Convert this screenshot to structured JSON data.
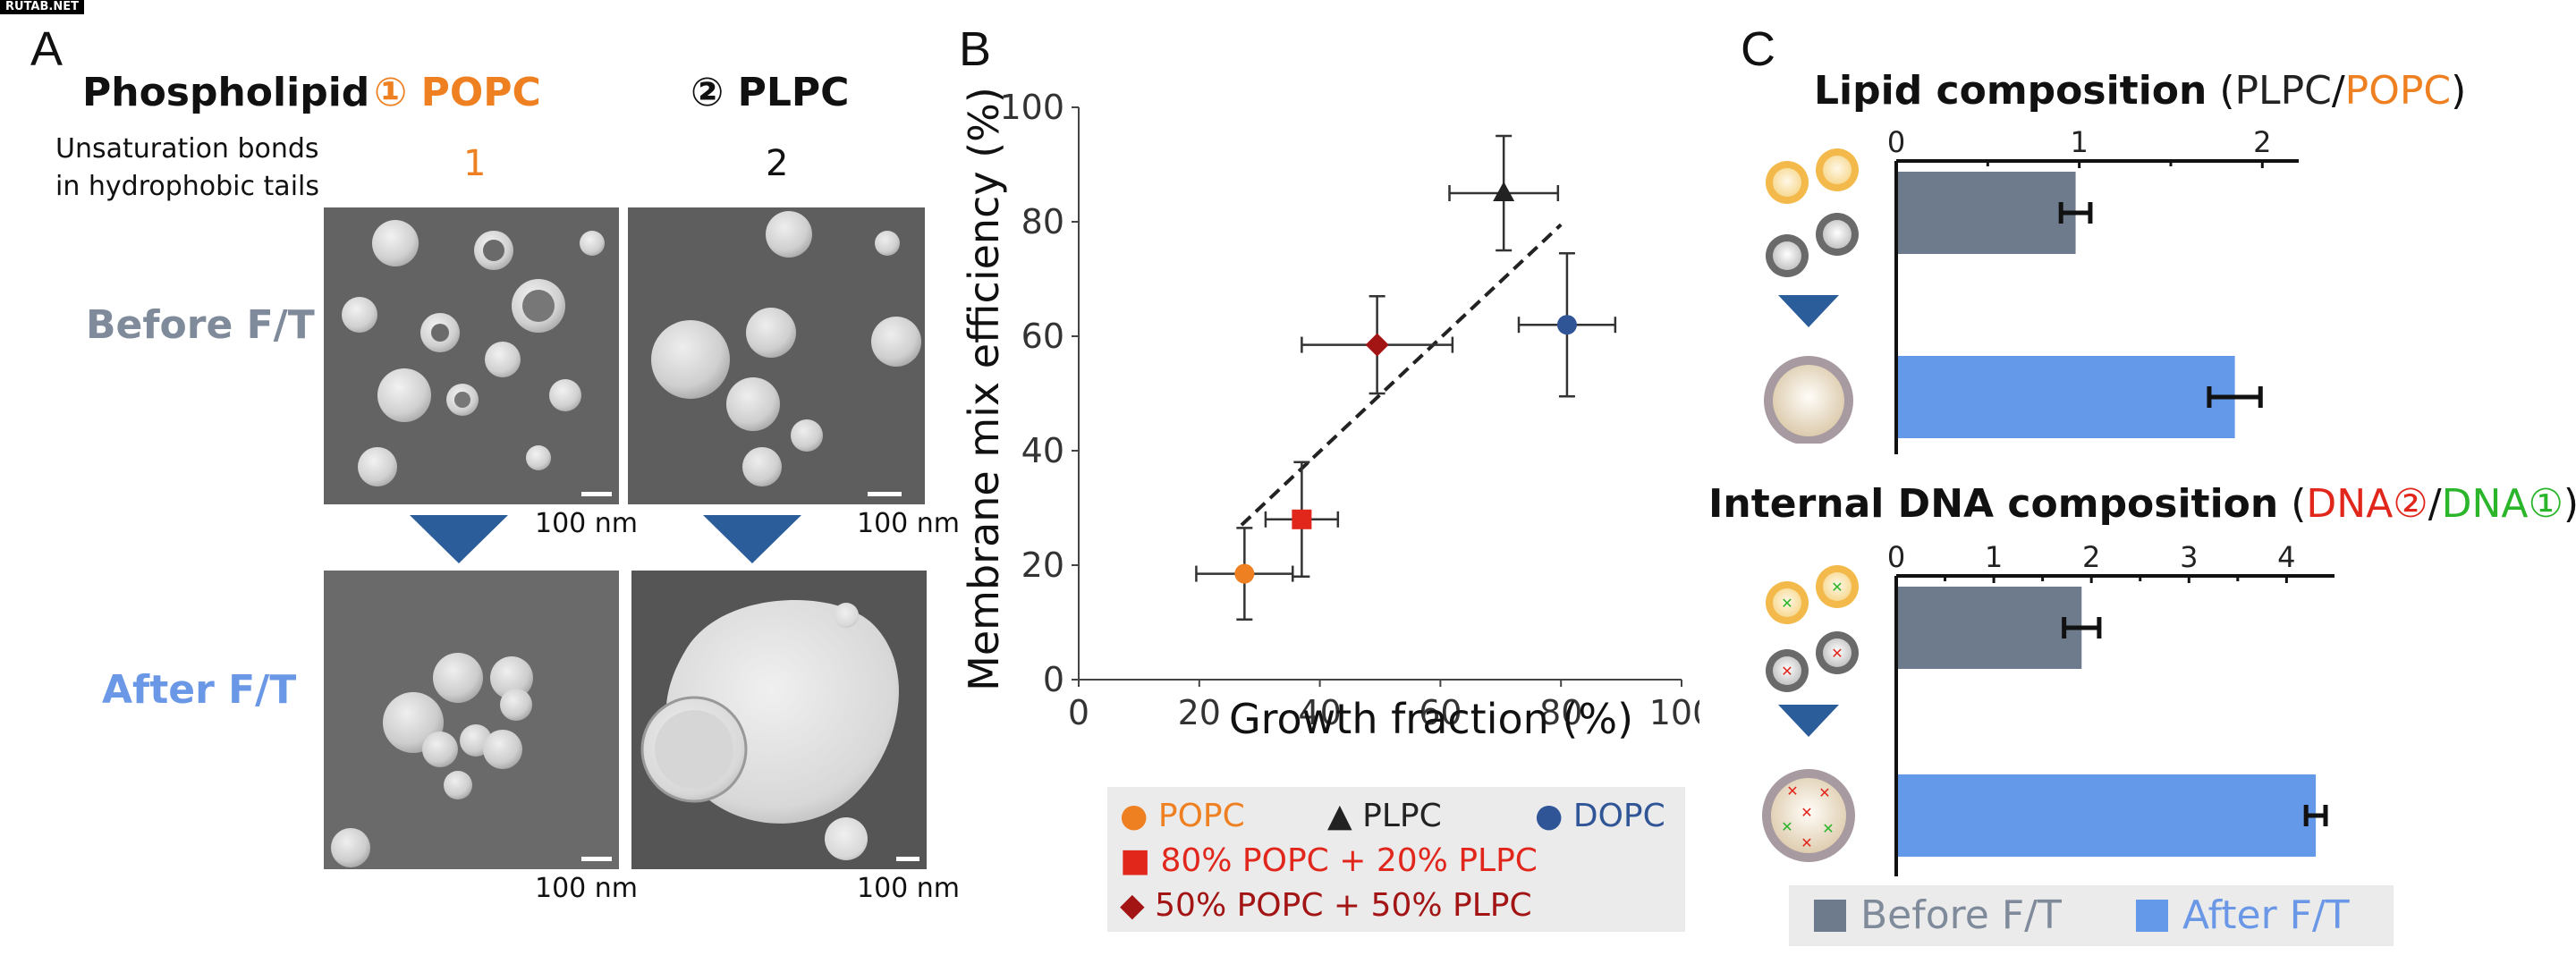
{
  "watermark": "RUTAB.NET",
  "panelA": {
    "letter": "A",
    "phospholipid_label": "Phospholipid",
    "col1_title": "① POPC",
    "col2_title": "② PLPC",
    "unsat_line1": "Unsaturation bonds",
    "unsat_line2": "in hydrophobic tails",
    "col1_unsat": "1",
    "col2_unsat": "2",
    "row_before": "Before F/T",
    "row_after": "After F/T",
    "scalebar": "100 nm",
    "colors": {
      "popc": "#ee8022",
      "before": "#7f8a9a",
      "after": "#6b98e6",
      "arrow": "#2b5d9b"
    }
  },
  "panelB": {
    "letter": "B",
    "chart_data": {
      "type": "scatter",
      "xlabel": "Growth fraction (%)",
      "ylabel": "Membrane mix efficiency (%)",
      "xlim": [
        0,
        100
      ],
      "ylim": [
        0,
        100
      ],
      "x_ticks": [
        "0",
        "20",
        "40",
        "60",
        "80",
        "100"
      ],
      "y_ticks": [
        "0",
        "20",
        "40",
        "60",
        "80",
        "100"
      ],
      "points": [
        {
          "name": "POPC",
          "x": 27.5,
          "y": 18.5,
          "xerr": 8,
          "yerr": 8,
          "marker": "circle",
          "color": "#ee8022"
        },
        {
          "name": "80% POPC + 20% PLPC",
          "x": 37,
          "y": 28,
          "xerr": 6,
          "yerr": 10,
          "marker": "square",
          "color": "#e1261c"
        },
        {
          "name": "50% POPC + 50% PLPC",
          "x": 49.5,
          "y": 58.5,
          "xerr": 12.5,
          "yerr": 8.5,
          "marker": "diamond",
          "color": "#a31515"
        },
        {
          "name": "PLPC",
          "x": 70.5,
          "y": 85,
          "xerr": 9,
          "yerr": 10,
          "marker": "triangle",
          "color": "#222222"
        },
        {
          "name": "DOPC",
          "x": 81,
          "y": 62,
          "xerr": 8,
          "yerr": 12.5,
          "marker": "circle",
          "color": "#2f5597"
        }
      ],
      "fit_line": {
        "x": [
          27,
          80
        ],
        "y": [
          27,
          79.5
        ]
      },
      "legend": {
        "popc": "POPC",
        "plpc": "PLPC",
        "dopc": "DOPC",
        "mix80": "80% POPC + 20% PLPC",
        "mix50": "50% POPC + 50% PLPC"
      }
    }
  },
  "panelC": {
    "letter": "C",
    "chart_data": [
      {
        "type": "bar",
        "orientation": "horizontal",
        "title_main": "Lipid composition",
        "title_open": "(",
        "title_a": "PLPC",
        "title_sep": "/",
        "title_b": "POPC",
        "title_close": ")",
        "title_a_color": "#222222",
        "title_b_color": "#ee8022",
        "xlim": [
          0,
          2.15
        ],
        "x_ticks": [
          "0",
          "1",
          "2"
        ],
        "series": [
          {
            "name": "Before F/T",
            "value": 0.98,
            "err": 0.08,
            "color": "#6d7b8d"
          },
          {
            "name": "After F/T",
            "value": 1.85,
            "err": 0.14,
            "color": "#6399e8"
          }
        ]
      },
      {
        "type": "bar",
        "orientation": "horizontal",
        "title_main": "Internal DNA composition",
        "title_open": "(",
        "title_a": "DNA②",
        "title_sep": "/",
        "title_b": "DNA①",
        "title_close": ")",
        "title_a_color": "#e1261c",
        "title_b_color": "#2bb52b",
        "xlim": [
          0,
          4.4
        ],
        "x_ticks": [
          "0",
          "1",
          "2",
          "3",
          "4"
        ],
        "series": [
          {
            "name": "Before F/T",
            "value": 1.9,
            "err": 0.18,
            "color": "#6d7b8d"
          },
          {
            "name": "After F/T",
            "value": 4.3,
            "err": 0.1,
            "color": "#6399e8"
          }
        ]
      }
    ],
    "legend": {
      "before": "Before F/T",
      "after": "After F/T"
    }
  }
}
